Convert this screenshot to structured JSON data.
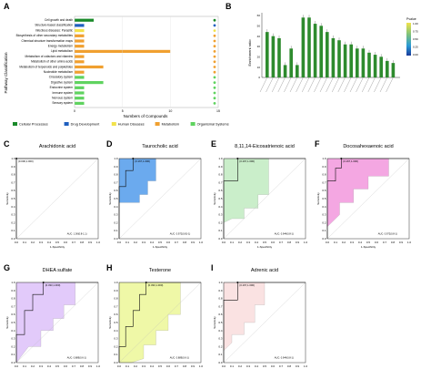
{
  "panel_a": {
    "label": "A",
    "ylabel": "Pathway Classification",
    "xlabel": "Numbers of Compounds",
    "legend": [
      {
        "name": "Cellular Processes",
        "color": "#1a8a2a"
      },
      {
        "name": "Drug Development",
        "color": "#1f5fbf"
      },
      {
        "name": "Human Diseases",
        "color": "#f2e24a"
      },
      {
        "name": "Metabolism",
        "color": "#f0a030"
      },
      {
        "name": "Organismal Systems",
        "color": "#5fd35f"
      }
    ]
  },
  "panel_b": {
    "label": "B",
    "ylabel": "Enrichment ratio",
    "colorbar_title": "Pvalue",
    "colorbar_ticks": [
      "1.00",
      "0.75",
      "0.50",
      "0.25",
      "0.00"
    ]
  },
  "roc_panels": [
    {
      "label": "C",
      "title": "Arachidonic acid",
      "point": "(0.000,1.000)",
      "auc": "AUC: 1.00(0.8-1.1)",
      "fill": "none"
    },
    {
      "label": "D",
      "title": "Taurocholic acid",
      "point": "(0.167,1.000)",
      "auc": "AUC: 0.972(0.81-1)",
      "fill": "#3a8ee8"
    },
    {
      "label": "E",
      "title": "8,11,14-Eicosatrienoic acid",
      "point": "(0.167,1.000)",
      "auc": "AUC: 0.944(0.8-1)",
      "fill": "#b8e8b8"
    },
    {
      "label": "F",
      "title": "Docosahexaenoic acid",
      "point": "(0.167,1.000)",
      "auc": "AUC: 0.972(0.8-1)",
      "fill": "#f08ad8"
    },
    {
      "label": "G",
      "title": "DHEA sulfate",
      "point": "(0.333,1.000)",
      "auc": "AUC: 0.889(0.6-1)",
      "fill": "#d8b8f8"
    },
    {
      "label": "H",
      "title": "Testerone",
      "point": "(0.333,1.000)",
      "auc": "AUC: 0.889(0.6-1)",
      "fill": "#eaf58a"
    },
    {
      "label": "I",
      "title": "Adrenic acid",
      "point": "(0.167,1.000)",
      "auc": "AUC: 0.944(0.8-1)",
      "fill": "#f8d8d8"
    }
  ],
  "roc_axes": {
    "xlabel": "1-Specificity",
    "ylabel": "Sensitivity",
    "ticks": [
      "0.0",
      "0.1",
      "0.2",
      "0.3",
      "0.4",
      "0.5",
      "0.6",
      "0.7",
      "0.8",
      "0.9",
      "1.0"
    ]
  },
  "chart_data": [
    {
      "type": "bar",
      "title": "",
      "xlabel": "Numbers of Compounds",
      "ylabel": "Pathway Classification",
      "xlim": [
        0,
        15
      ],
      "x_ticks": [
        0,
        5,
        10,
        15
      ],
      "categories": [
        "Cell growth and death",
        "Structure-based classification",
        "Infectious diseases: Parasitic",
        "Biosynthesis of other secondary metabolites",
        "Chemical structure transformation maps",
        "Energy metabolism",
        "Lipid metabolism",
        "Metabolism of cofactors and vitamins",
        "Metabolism of other amino acids",
        "Metabolism of terpenoids and polyketides",
        "Nucleotide metabolism",
        "Circulatory system",
        "Digestive system",
        "Endocrine system",
        "Immune system",
        "Nervous system",
        "Sensory system"
      ],
      "values": [
        2,
        1,
        1,
        1,
        1,
        1,
        10,
        1,
        1,
        3,
        1,
        1,
        3,
        1,
        1,
        1,
        1
      ],
      "groups": [
        "Cellular Processes",
        "Drug Development",
        "Human Diseases",
        "Metabolism",
        "Metabolism",
        "Metabolism",
        "Metabolism",
        "Metabolism",
        "Metabolism",
        "Metabolism",
        "Metabolism",
        "Organismal Systems",
        "Organismal Systems",
        "Organismal Systems",
        "Organismal Systems",
        "Organismal Systems",
        "Organismal Systems"
      ]
    },
    {
      "type": "bar",
      "xlabel": "",
      "ylabel": "Enrichment ratio",
      "n_bars": 22,
      "values": [
        44,
        40,
        38,
        12,
        28,
        12,
        58,
        58,
        52,
        50,
        44,
        38,
        36,
        32,
        32,
        28,
        28,
        24,
        22,
        20,
        16,
        14
      ],
      "ylim": [
        0,
        60
      ],
      "y_ticks": [
        0,
        10,
        20,
        30,
        40,
        50,
        60
      ],
      "legend_placement": "right"
    }
  ]
}
